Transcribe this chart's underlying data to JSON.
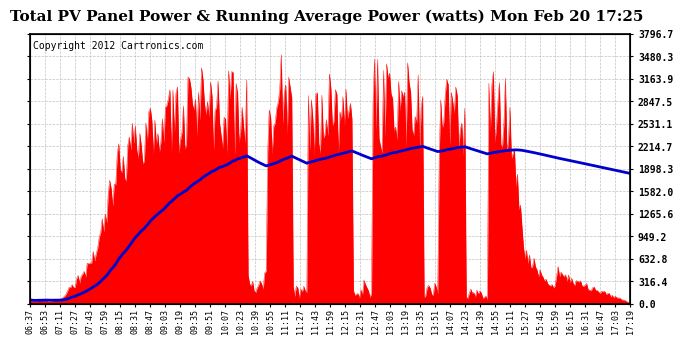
{
  "title": "Total PV Panel Power & Running Average Power (watts) Mon Feb 20 17:25",
  "copyright": "Copyright 2012 Cartronics.com",
  "ylabel_right_ticks": [
    0.0,
    316.4,
    632.8,
    949.2,
    1265.6,
    1582.0,
    1898.3,
    2214.7,
    2531.1,
    2847.5,
    3163.9,
    3480.3,
    3796.7
  ],
  "ymax": 3796.7,
  "ymin": 0.0,
  "x_labels": [
    "06:37",
    "06:53",
    "07:11",
    "07:27",
    "07:43",
    "07:59",
    "08:15",
    "08:31",
    "08:47",
    "09:03",
    "09:19",
    "09:35",
    "09:51",
    "10:07",
    "10:23",
    "10:39",
    "10:55",
    "11:11",
    "11:27",
    "11:43",
    "11:59",
    "12:15",
    "12:31",
    "12:47",
    "13:03",
    "13:19",
    "13:35",
    "13:51",
    "14:07",
    "14:23",
    "14:39",
    "14:55",
    "15:11",
    "15:27",
    "15:43",
    "15:59",
    "16:15",
    "16:31",
    "16:47",
    "17:03",
    "17:19"
  ],
  "fill_color": "#FF0000",
  "line_color": "#0000CC",
  "background_color": "#FFFFFF",
  "grid_color": "#BBBBBB",
  "title_fontsize": 11,
  "copyright_fontsize": 7
}
